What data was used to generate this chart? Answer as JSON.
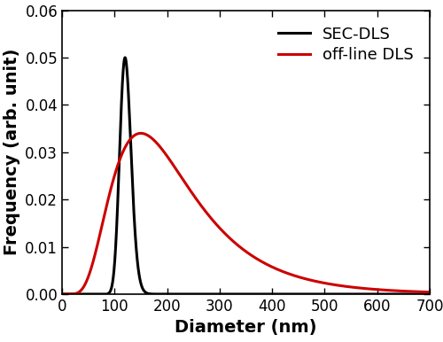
{
  "title": "",
  "xlabel": "Diameter (nm)",
  "ylabel": "Frequency (arb. unit)",
  "xlim": [
    0,
    700
  ],
  "ylim": [
    0,
    0.06
  ],
  "xticks": [
    0,
    100,
    200,
    300,
    400,
    500,
    600,
    700
  ],
  "yticks": [
    0.0,
    0.01,
    0.02,
    0.03,
    0.04,
    0.05,
    0.06
  ],
  "black_line_label": "SEC-DLS",
  "red_line_label": "off-line DLS",
  "black_color": "#000000",
  "red_color": "#cc0000",
  "legend_text_color": "#000000",
  "line_width": 2.2,
  "black_peak": 120,
  "black_sigma": 0.09,
  "black_amplitude": 0.05,
  "black_onset": 88,
  "red_peak": 150,
  "red_sigma": 0.52,
  "red_amplitude": 0.034,
  "figsize": [
    5.0,
    3.86
  ],
  "dpi": 100,
  "label_fontsize": 14,
  "tick_fontsize": 12,
  "legend_fontsize": 13
}
